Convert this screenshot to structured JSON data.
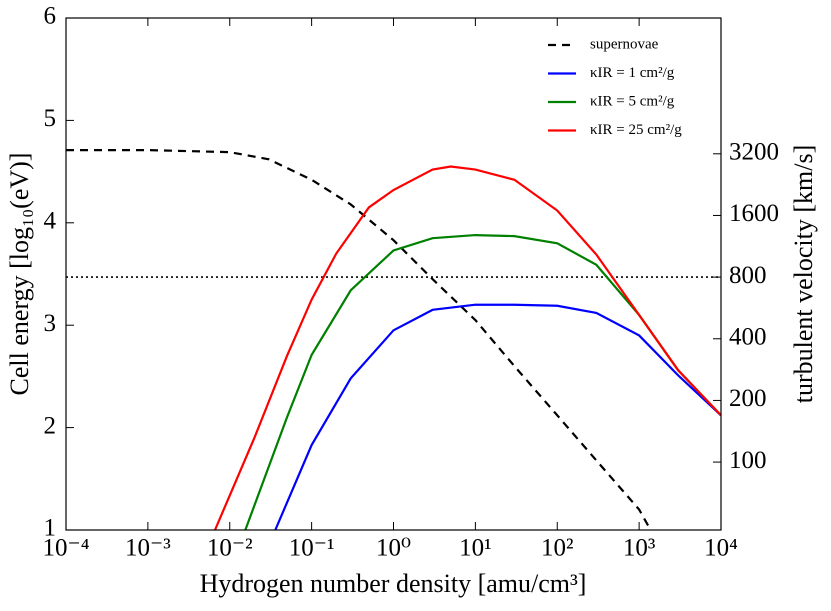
{
  "chart_data": {
    "type": "line",
    "xlabel": "Hydrogen number density [amu/cm³]",
    "ylabel": "Cell energy [log₁₀(eV)]",
    "y2label": "turbulent velocity [km/s]",
    "xscale": "log",
    "xlim": [
      0.0001,
      10000
    ],
    "xticks": [
      {
        "value": 0.0001,
        "label": "10⁻⁴"
      },
      {
        "value": 0.001,
        "label": "10⁻³"
      },
      {
        "value": 0.01,
        "label": "10⁻²"
      },
      {
        "value": 0.1,
        "label": "10⁻¹"
      },
      {
        "value": 1,
        "label": "10⁰"
      },
      {
        "value": 10,
        "label": "10¹"
      },
      {
        "value": 100,
        "label": "10²"
      },
      {
        "value": 1000,
        "label": "10³"
      },
      {
        "value": 10000,
        "label": "10⁴"
      }
    ],
    "ylim": [
      1,
      6
    ],
    "yticks": [
      1,
      2,
      3,
      4,
      5,
      6
    ],
    "y2scale": "log",
    "y2lim": [
      46.6,
      14730
    ],
    "y2ticks": [
      100,
      200,
      400,
      800,
      1600,
      3200
    ],
    "reference_line": 3.47,
    "legend": "upper right",
    "series": [
      {
        "name": "supernovae",
        "color": "#000000",
        "dash": "dashed",
        "x": [
          0.0001,
          0.001,
          0.01,
          0.03,
          0.1,
          0.3,
          1,
          3,
          10,
          30,
          100,
          300,
          1000,
          1380
        ],
        "values": [
          4.71,
          4.71,
          4.69,
          4.62,
          4.42,
          4.18,
          3.83,
          3.45,
          3.05,
          2.6,
          2.12,
          1.68,
          1.2,
          1.0
        ]
      },
      {
        "name": "κIR = 1 cm²/g",
        "color": "#0000ff",
        "dash": "solid",
        "x": [
          0.036,
          0.1,
          0.3,
          1,
          3,
          10,
          30,
          100,
          300,
          1000,
          3000,
          10000
        ],
        "values": [
          1,
          1.83,
          2.48,
          2.95,
          3.15,
          3.2,
          3.2,
          3.19,
          3.12,
          2.9,
          2.51,
          2.12
        ]
      },
      {
        "name": "κIR = 5 cm²/g",
        "color": "#008000",
        "dash": "solid",
        "x": [
          0.0155,
          0.05,
          0.1,
          0.3,
          1,
          3,
          10,
          30,
          100,
          300,
          1000,
          3000,
          10000
        ],
        "values": [
          1,
          2.1,
          2.71,
          3.34,
          3.73,
          3.85,
          3.88,
          3.87,
          3.8,
          3.59,
          3.1,
          2.56,
          2.12
        ]
      },
      {
        "name": "κIR = 25 cm²/g",
        "color": "#ff0000",
        "dash": "solid",
        "x": [
          0.0066,
          0.02,
          0.05,
          0.1,
          0.2,
          0.5,
          1,
          3,
          5,
          10,
          30,
          100,
          300,
          1000,
          3000,
          10000
        ],
        "values": [
          1,
          1.9,
          2.7,
          3.25,
          3.7,
          4.15,
          4.32,
          4.52,
          4.55,
          4.52,
          4.42,
          4.12,
          3.69,
          3.1,
          2.56,
          2.12
        ]
      }
    ]
  }
}
